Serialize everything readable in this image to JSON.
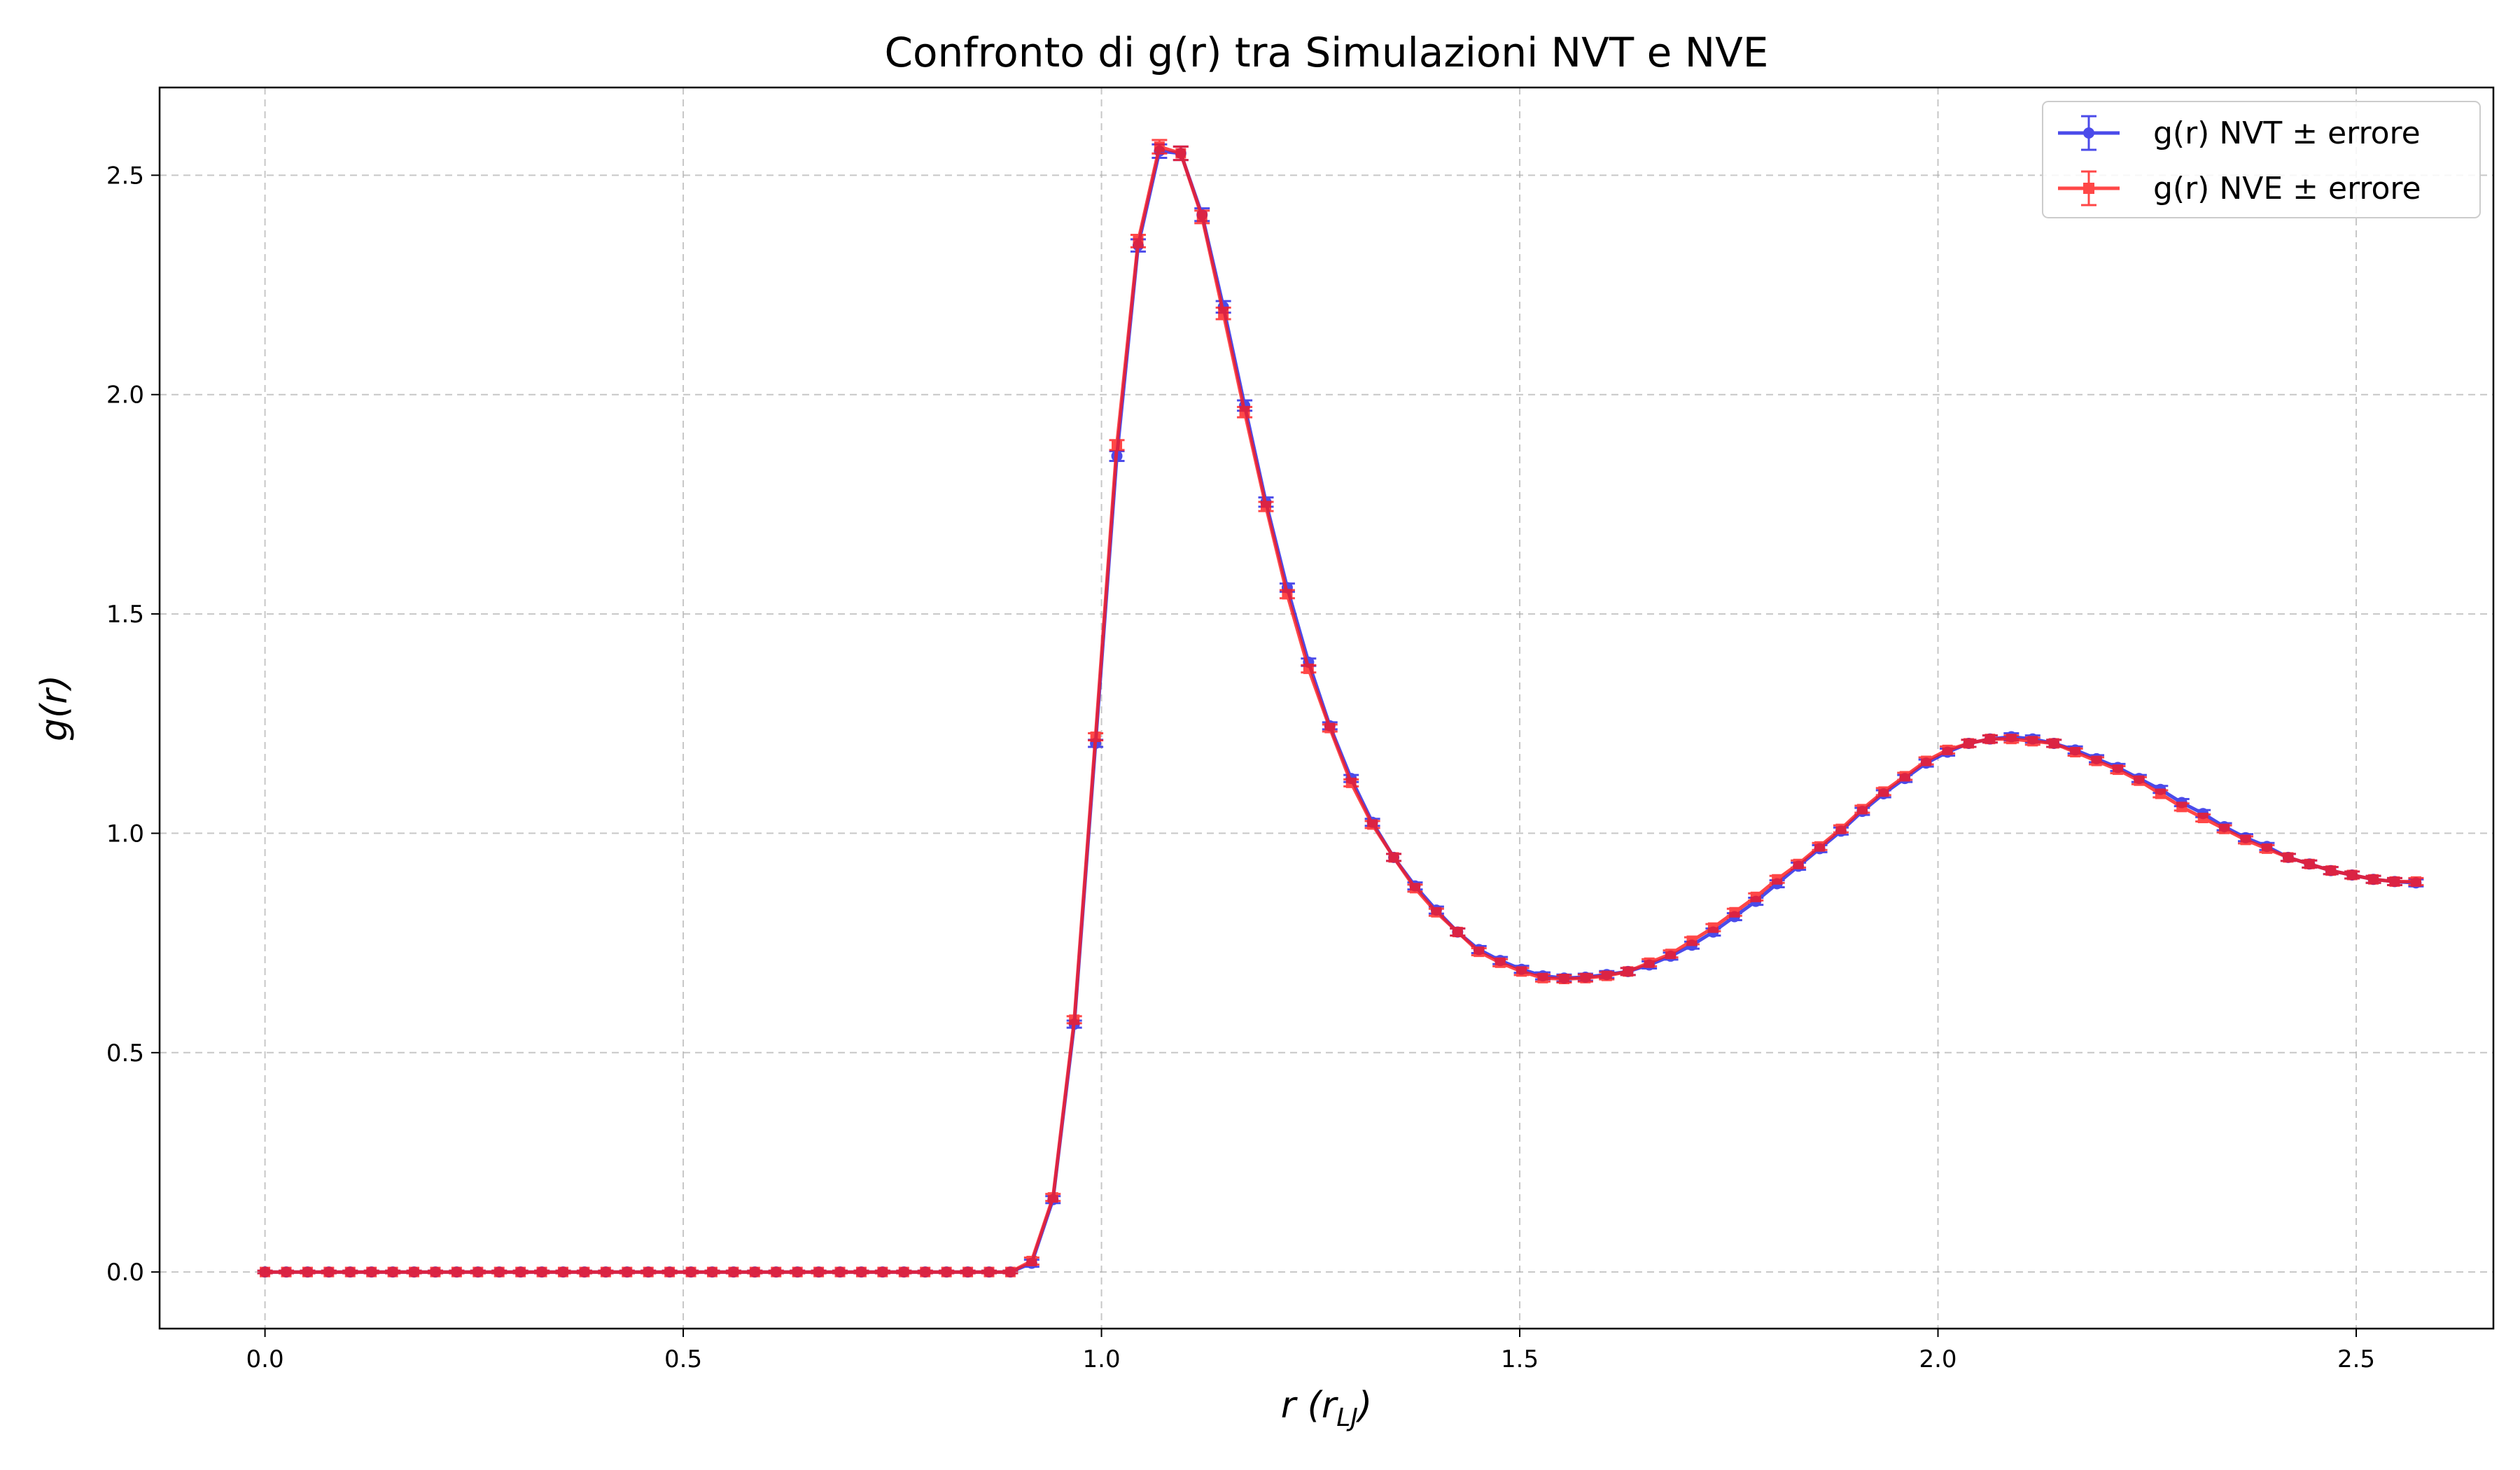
{
  "chart_data": {
    "type": "line",
    "title": "Confronto di g(r) tra Simulazioni NVT e NVE",
    "xlabel": {
      "main": "r (r",
      "sub": "LJ",
      "close": ")"
    },
    "ylabel": "g(r)",
    "xlim": [
      -0.126,
      2.664
    ],
    "ylim": [
      -0.129,
      2.7
    ],
    "xticks": [
      0.0,
      0.5,
      1.0,
      1.5,
      2.0,
      2.5
    ],
    "xtick_labels": [
      "0.0",
      "0.5",
      "1.0",
      "1.5",
      "2.0",
      "2.5"
    ],
    "yticks": [
      0.0,
      0.5,
      1.0,
      1.5,
      2.0,
      2.5
    ],
    "ytick_labels": [
      "0.0",
      "0.5",
      "1.0",
      "1.5",
      "2.0",
      "2.5"
    ],
    "grid": true,
    "legend_position": "top-right",
    "x_start": 0.0,
    "x_step": 0.02546,
    "series": [
      {
        "name": "g(r) NVT ± errore",
        "color": "#1f1fe6",
        "marker": "circle",
        "values": [
          0,
          0,
          0,
          0,
          0,
          0,
          0,
          0,
          0,
          0,
          0,
          0,
          0,
          0,
          0,
          0,
          0,
          0,
          0,
          0,
          0,
          0,
          0,
          0,
          0,
          0,
          0,
          0,
          0,
          0,
          0,
          0,
          0,
          0,
          0,
          0,
          0.02,
          0.165,
          0.565,
          1.205,
          1.86,
          2.34,
          2.555,
          2.55,
          2.41,
          2.2,
          1.975,
          1.755,
          1.56,
          1.39,
          1.245,
          1.125,
          1.025,
          0.945,
          0.88,
          0.825,
          0.775,
          0.735,
          0.71,
          0.69,
          0.675,
          0.67,
          0.672,
          0.678,
          0.685,
          0.7,
          0.72,
          0.745,
          0.775,
          0.81,
          0.845,
          0.885,
          0.925,
          0.965,
          1.005,
          1.05,
          1.09,
          1.125,
          1.16,
          1.185,
          1.205,
          1.215,
          1.22,
          1.215,
          1.205,
          1.19,
          1.17,
          1.15,
          1.125,
          1.1,
          1.07,
          1.045,
          1.015,
          0.99,
          0.97,
          0.945,
          0.93,
          0.915,
          0.905,
          0.895,
          0.89,
          0.887
        ]
      },
      {
        "name": "g(r) NVE ± errore",
        "color": "#ff1a1a",
        "marker": "square",
        "values": [
          0,
          0,
          0,
          0,
          0,
          0,
          0,
          0,
          0,
          0,
          0,
          0,
          0,
          0,
          0,
          0,
          0,
          0,
          0,
          0,
          0,
          0,
          0,
          0,
          0,
          0,
          0,
          0,
          0,
          0,
          0,
          0,
          0,
          0,
          0,
          0,
          0.025,
          0.17,
          0.575,
          1.22,
          1.885,
          2.35,
          2.565,
          2.55,
          2.405,
          2.185,
          1.96,
          1.745,
          1.545,
          1.375,
          1.24,
          1.115,
          1.02,
          0.945,
          0.875,
          0.82,
          0.775,
          0.73,
          0.705,
          0.685,
          0.67,
          0.668,
          0.67,
          0.675,
          0.685,
          0.705,
          0.725,
          0.755,
          0.785,
          0.82,
          0.855,
          0.895,
          0.93,
          0.97,
          1.01,
          1.055,
          1.095,
          1.13,
          1.165,
          1.19,
          1.205,
          1.215,
          1.215,
          1.21,
          1.205,
          1.185,
          1.165,
          1.145,
          1.12,
          1.09,
          1.06,
          1.035,
          1.01,
          0.985,
          0.965,
          0.945,
          0.93,
          0.915,
          0.905,
          0.895,
          0.89,
          0.89
        ]
      }
    ]
  }
}
